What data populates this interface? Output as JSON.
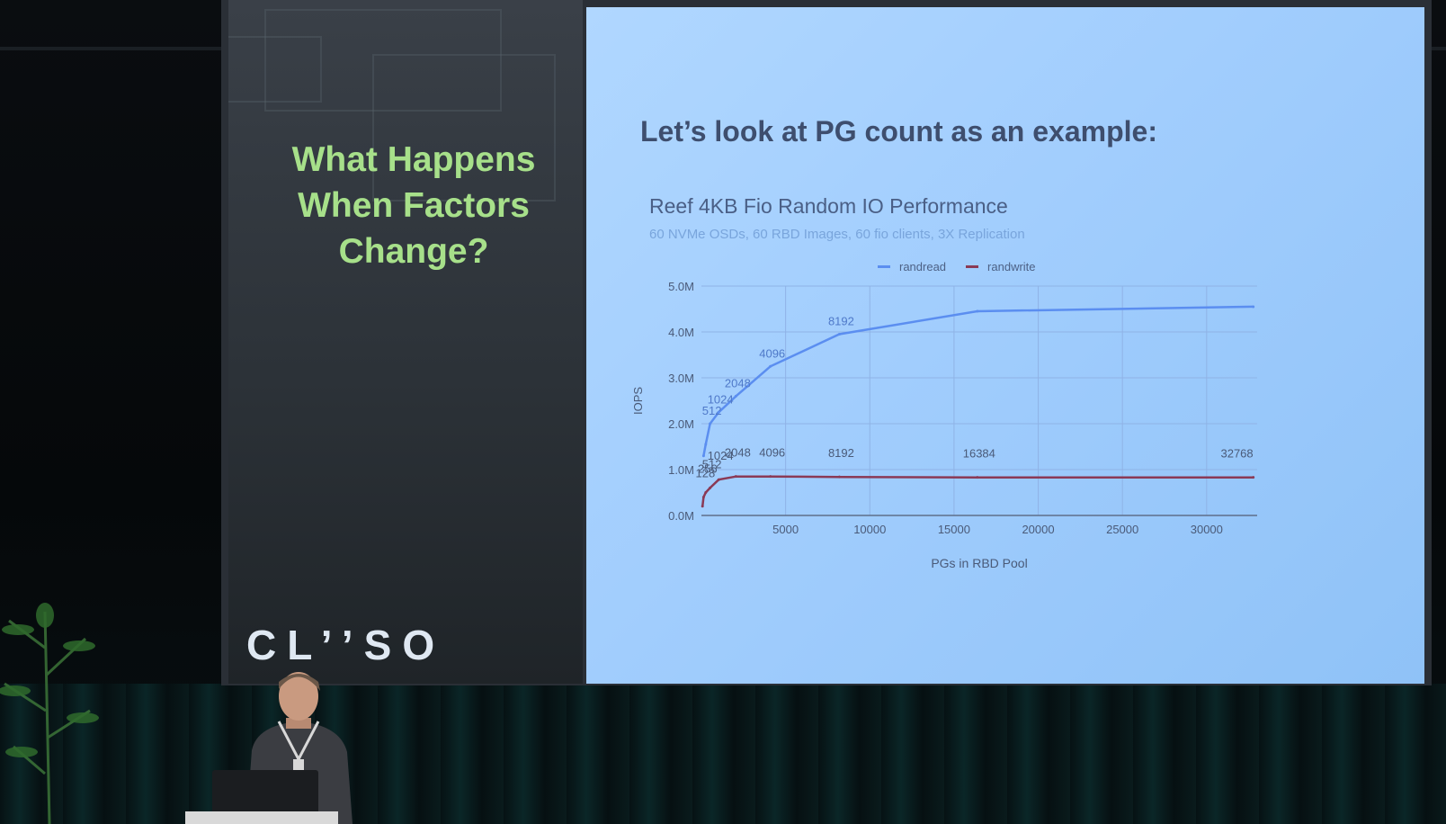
{
  "left_heading": [
    "What Happens",
    "When Factors",
    "Change?"
  ],
  "logo_text": "CL’’SO",
  "slide_title": "Let’s look at PG count as an example:",
  "colors": {
    "heading_green": "#a7e08a",
    "slide_bg": "#a1cdfd",
    "randread": "#5b8ef0",
    "randwrite": "#8a3a56"
  },
  "chart_data": {
    "type": "line",
    "title": "Reef 4KB Fio Random IO Performance",
    "subtitle": "60 NVMe OSDs, 60 RBD Images, 60 fio clients, 3X Replication",
    "xlabel": "PGs in RBD Pool",
    "ylabel": "IOPS",
    "xlim": [
      0,
      33000
    ],
    "ylim": [
      0,
      5000000
    ],
    "x_ticks": [
      5000,
      10000,
      15000,
      20000,
      25000,
      30000
    ],
    "y_ticks": [
      {
        "value": 0,
        "label": "0.0M"
      },
      {
        "value": 1000000,
        "label": "1.0M"
      },
      {
        "value": 2000000,
        "label": "2.0M"
      },
      {
        "value": 3000000,
        "label": "3.0M"
      },
      {
        "value": 4000000,
        "label": "4.0M"
      },
      {
        "value": 5000000,
        "label": "5.0M"
      }
    ],
    "grid": true,
    "legend_position": "top",
    "series": [
      {
        "name": "randread",
        "x": [
          128,
          256,
          512,
          1024,
          2048,
          4096,
          8192,
          16384,
          32768
        ],
        "y": [
          1300000,
          1550000,
          2000000,
          2250000,
          2600000,
          3250000,
          3950000,
          4450000,
          4550000
        ],
        "point_labels": [
          "",
          "",
          "512",
          "1024",
          "2048",
          "4096",
          "8192",
          "",
          ""
        ]
      },
      {
        "name": "randwrite",
        "x": [
          64,
          128,
          256,
          512,
          1024,
          2048,
          4096,
          8192,
          16384,
          32768
        ],
        "y": [
          200000,
          400000,
          500000,
          600000,
          780000,
          850000,
          850000,
          840000,
          830000,
          830000
        ],
        "point_labels": [
          "",
          "128",
          "256",
          "512",
          "1024",
          "2048",
          "4096",
          "8192",
          "16384",
          "32768"
        ]
      }
    ]
  }
}
